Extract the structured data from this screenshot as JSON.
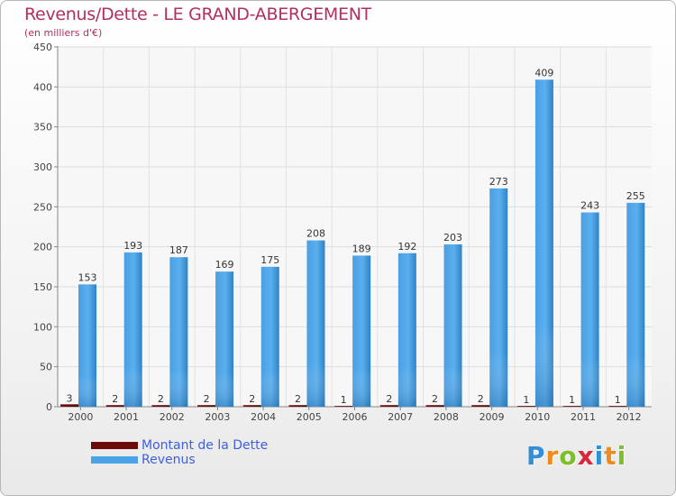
{
  "header": {
    "title": "Revenus/Dette - LE GRAND-ABERGEMENT",
    "subtitle": "(en milliers d'€)"
  },
  "colors": {
    "title": "#b32e61",
    "dette": "#6b0a0a",
    "revenus": "#4aa3e6",
    "legend_text": "#3d5fe0"
  },
  "legend": {
    "items": [
      {
        "label": "Montant de la Dette",
        "color": "#6b0a0a"
      },
      {
        "label": "Revenus",
        "color": "#4aa3e6"
      }
    ]
  },
  "logo": {
    "text": "Proxiti",
    "letters": [
      {
        "ch": "P",
        "color": "#2f8fd9"
      },
      {
        "ch": "r",
        "color": "#f08a1c"
      },
      {
        "ch": "o",
        "color": "#7bbf2a"
      },
      {
        "ch": "x",
        "color": "#d8263a"
      },
      {
        "ch": "i",
        "color": "#2f8fd9"
      },
      {
        "ch": "t",
        "color": "#f08a1c"
      },
      {
        "ch": "i",
        "color": "#7bbf2a"
      }
    ]
  },
  "chart_data": {
    "type": "bar",
    "title": "Revenus/Dette - LE GRAND-ABERGEMENT",
    "subtitle": "(en milliers d'€)",
    "categories": [
      "2000",
      "2001",
      "2002",
      "2003",
      "2004",
      "2005",
      "2006",
      "2007",
      "2008",
      "2009",
      "2010",
      "2011",
      "2012"
    ],
    "series": [
      {
        "name": "Montant de la Dette",
        "values": [
          3,
          2,
          2,
          2,
          2,
          2,
          1,
          2,
          2,
          2,
          1,
          1,
          1
        ]
      },
      {
        "name": "Revenus",
        "values": [
          153,
          193,
          187,
          169,
          175,
          208,
          189,
          192,
          203,
          273,
          409,
          243,
          255
        ]
      }
    ],
    "ylim": [
      0,
      450
    ],
    "yticks": [
      0,
      50,
      100,
      150,
      200,
      250,
      300,
      350,
      400,
      450
    ],
    "grid": true,
    "legend_position": "bottom-left"
  }
}
